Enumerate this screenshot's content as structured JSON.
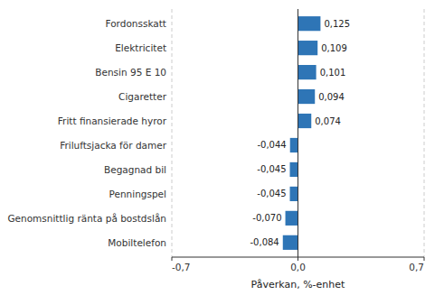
{
  "chart_data": {
    "type": "bar",
    "orientation": "horizontal",
    "categories": [
      "Mobiltelefon",
      "Genomsnittlig ränta på bostdslån",
      "Penningspel",
      "Begagnad bil",
      "Friluftsjacka för damer",
      "Fritt finansierade hyror",
      "Cigaretter",
      "Bensin 95 E 10",
      "Elektricitet",
      "Fordonsskatt"
    ],
    "values": [
      -0.084,
      -0.07,
      -0.045,
      -0.045,
      -0.044,
      0.074,
      0.094,
      0.101,
      0.109,
      0.125
    ],
    "value_labels": [
      "-0,084",
      "-0,070",
      "-0,045",
      "-0,045",
      "-0,044",
      "0,074",
      "0,094",
      "0,101",
      "0,109",
      "0,125"
    ],
    "data_labels": true,
    "color": "#2E75B6",
    "xlabel": "Påverkan, %-enhet",
    "xlim": [
      -0.7,
      0.7
    ],
    "xticks": [
      {
        "value": -0.7,
        "label": "-0,7"
      },
      {
        "value": 0.0,
        "label": "0,0"
      },
      {
        "value": 0.7,
        "label": "0,7"
      }
    ],
    "grid": true
  }
}
